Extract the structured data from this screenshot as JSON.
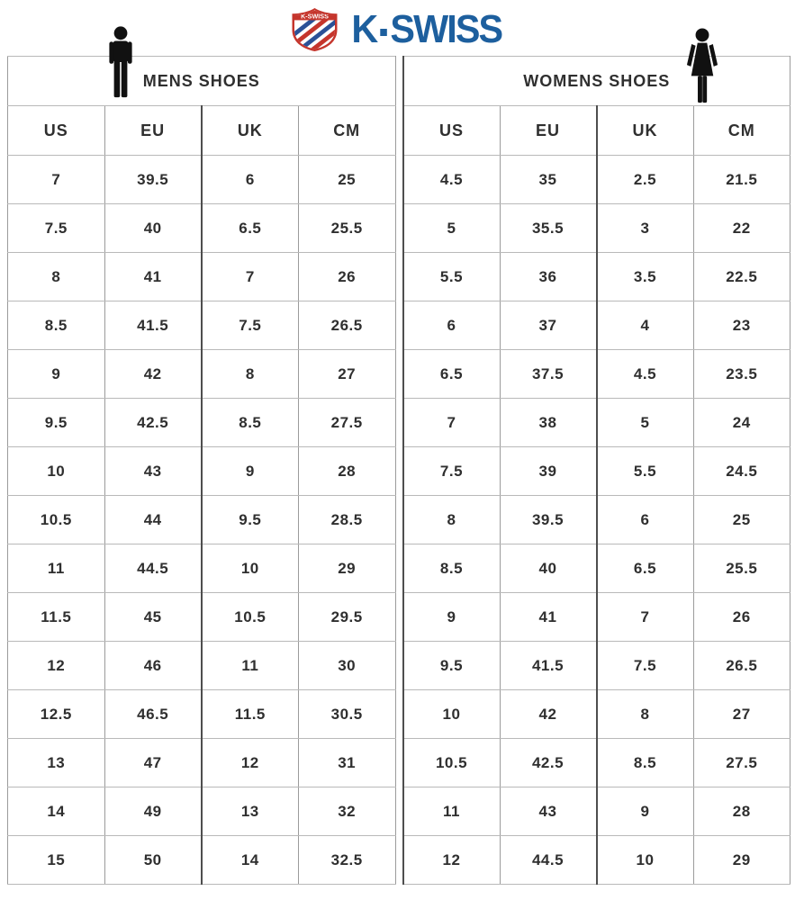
{
  "logo": {
    "wordmark_k": "K",
    "wordmark_swiss": "SWISS",
    "shield_text": "K-SWISS",
    "colors": {
      "wordmark_blue": "#1d5f9e",
      "shield_red": "#c5352c",
      "stripe_blue": "#2b5197"
    }
  },
  "tables": [
    {
      "id": "mens",
      "title": "MENS SHOES",
      "icon": "man-icon",
      "columns": [
        "US",
        "EU",
        "UK",
        "CM"
      ],
      "rows": [
        [
          "7",
          "39.5",
          "6",
          "25"
        ],
        [
          "7.5",
          "40",
          "6.5",
          "25.5"
        ],
        [
          "8",
          "41",
          "7",
          "26"
        ],
        [
          "8.5",
          "41.5",
          "7.5",
          "26.5"
        ],
        [
          "9",
          "42",
          "8",
          "27"
        ],
        [
          "9.5",
          "42.5",
          "8.5",
          "27.5"
        ],
        [
          "10",
          "43",
          "9",
          "28"
        ],
        [
          "10.5",
          "44",
          "9.5",
          "28.5"
        ],
        [
          "11",
          "44.5",
          "10",
          "29"
        ],
        [
          "11.5",
          "45",
          "10.5",
          "29.5"
        ],
        [
          "12",
          "46",
          "11",
          "30"
        ],
        [
          "12.5",
          "46.5",
          "11.5",
          "30.5"
        ],
        [
          "13",
          "47",
          "12",
          "31"
        ],
        [
          "14",
          "49",
          "13",
          "32"
        ],
        [
          "15",
          "50",
          "14",
          "32.5"
        ]
      ]
    },
    {
      "id": "womens",
      "title": "WOMENS SHOES",
      "icon": "woman-icon",
      "columns": [
        "US",
        "EU",
        "UK",
        "CM"
      ],
      "rows": [
        [
          "4.5",
          "35",
          "2.5",
          "21.5"
        ],
        [
          "5",
          "35.5",
          "3",
          "22"
        ],
        [
          "5.5",
          "36",
          "3.5",
          "22.5"
        ],
        [
          "6",
          "37",
          "4",
          "23"
        ],
        [
          "6.5",
          "37.5",
          "4.5",
          "23.5"
        ],
        [
          "7",
          "38",
          "5",
          "24"
        ],
        [
          "7.5",
          "39",
          "5.5",
          "24.5"
        ],
        [
          "8",
          "39.5",
          "6",
          "25"
        ],
        [
          "8.5",
          "40",
          "6.5",
          "25.5"
        ],
        [
          "9",
          "41",
          "7",
          "26"
        ],
        [
          "9.5",
          "41.5",
          "7.5",
          "26.5"
        ],
        [
          "10",
          "42",
          "8",
          "27"
        ],
        [
          "10.5",
          "42.5",
          "8.5",
          "27.5"
        ],
        [
          "11",
          "43",
          "9",
          "28"
        ],
        [
          "12",
          "44.5",
          "10",
          "29"
        ]
      ]
    }
  ]
}
